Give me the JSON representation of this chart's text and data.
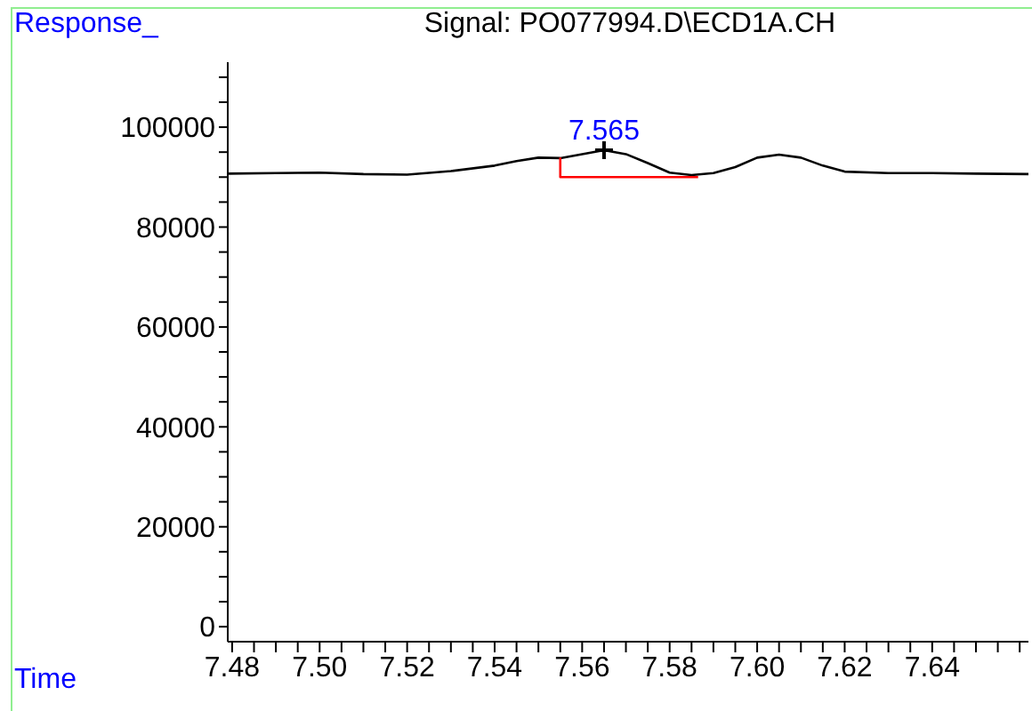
{
  "chart_data": {
    "type": "line",
    "title": "Signal: PO077994.D\\ECD1A.CH",
    "xlabel": "Time",
    "ylabel": "Response_",
    "xlim": [
      7.479,
      7.662
    ],
    "ylim": [
      -3000,
      113000
    ],
    "xticks": [
      7.48,
      {
        "value": 7.485,
        "label": null
      },
      {
        "value": 7.49,
        "label": null
      },
      {
        "value": 7.495,
        "label": null
      },
      {
        "value": 7.5,
        "label": "7.50"
      },
      {
        "value": 7.505,
        "label": null
      },
      {
        "value": 7.51,
        "label": null
      },
      {
        "value": 7.515,
        "label": null
      },
      7.52,
      {
        "value": 7.525,
        "label": null
      },
      {
        "value": 7.53,
        "label": null
      },
      {
        "value": 7.535,
        "label": null
      },
      7.54,
      {
        "value": 7.545,
        "label": null
      },
      {
        "value": 7.55,
        "label": null
      },
      {
        "value": 7.555,
        "label": null
      },
      7.56,
      {
        "value": 7.565,
        "label": null
      },
      {
        "value": 7.57,
        "label": null
      },
      {
        "value": 7.575,
        "label": null
      },
      7.58,
      {
        "value": 7.585,
        "label": null
      },
      {
        "value": 7.59,
        "label": null
      },
      {
        "value": 7.595,
        "label": null
      },
      {
        "value": 7.6,
        "label": "7.60"
      },
      {
        "value": 7.605,
        "label": null
      },
      {
        "value": 7.61,
        "label": null
      },
      {
        "value": 7.615,
        "label": null
      },
      7.62,
      {
        "value": 7.625,
        "label": null
      },
      {
        "value": 7.63,
        "label": null
      },
      {
        "value": 7.635,
        "label": null
      },
      7.64,
      {
        "value": 7.645,
        "label": null
      },
      {
        "value": 7.65,
        "label": null
      },
      {
        "value": 7.655,
        "label": null
      },
      {
        "value": 7.66,
        "label": null
      }
    ],
    "yticks": [
      0,
      {
        "value": 5000,
        "label": null
      },
      {
        "value": 10000,
        "label": null
      },
      {
        "value": 15000,
        "label": null
      },
      20000,
      {
        "value": 25000,
        "label": null
      },
      {
        "value": 30000,
        "label": null
      },
      {
        "value": 35000,
        "label": null
      },
      40000,
      {
        "value": 45000,
        "label": null
      },
      {
        "value": 50000,
        "label": null
      },
      {
        "value": 55000,
        "label": null
      },
      60000,
      {
        "value": 65000,
        "label": null
      },
      {
        "value": 70000,
        "label": null
      },
      {
        "value": 75000,
        "label": null
      },
      80000,
      {
        "value": 85000,
        "label": null
      },
      {
        "value": 90000,
        "label": null
      },
      {
        "value": 95000,
        "label": null
      },
      100000,
      {
        "value": 105000,
        "label": null
      },
      {
        "value": 110000,
        "label": null
      }
    ],
    "series": [
      {
        "color": "#000000",
        "marker": "none",
        "x": [
          7.479,
          7.49,
          7.5,
          7.51,
          7.52,
          7.53,
          7.54,
          7.545,
          7.55,
          7.555,
          7.56,
          7.565,
          7.57,
          7.575,
          7.58,
          7.585,
          7.59,
          7.595,
          7.6,
          7.605,
          7.61,
          7.615,
          7.62,
          7.63,
          7.64,
          7.65,
          7.662
        ],
        "values": [
          90700,
          90800,
          90900,
          90600,
          90500,
          91200,
          92300,
          93200,
          93900,
          93800,
          94600,
          95400,
          94600,
          92800,
          90900,
          90400,
          90800,
          92000,
          93900,
          94500,
          93900,
          92300,
          91100,
          90800,
          90800,
          90700,
          90600
        ]
      },
      {
        "color": "#ff0000",
        "marker": "none",
        "x": [
          7.555,
          7.555,
          7.5865
        ],
        "values": [
          93900,
          90000,
          90000
        ]
      },
      {
        "type": "scatter",
        "color": "#000000",
        "marker": "cross",
        "x": [
          7.565
        ],
        "values": [
          95400
        ]
      }
    ],
    "annotations": [
      {
        "text": "7.565",
        "x": 7.565,
        "y": 95400
      }
    ]
  }
}
